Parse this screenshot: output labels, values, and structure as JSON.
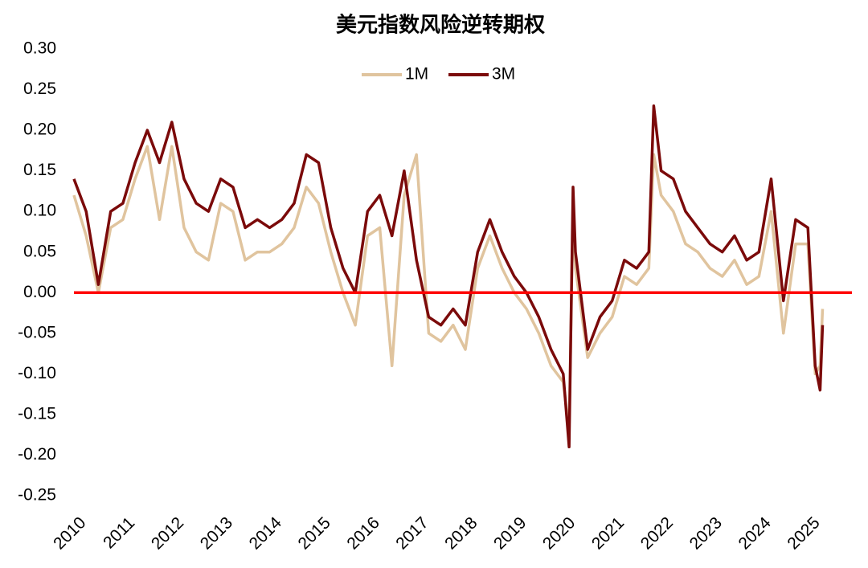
{
  "chart_data": {
    "type": "line",
    "title": "美元指数风险逆转期权",
    "x": [
      2010,
      2010.25,
      2010.5,
      2010.75,
      2011,
      2011.25,
      2011.5,
      2011.75,
      2012,
      2012.25,
      2012.5,
      2012.75,
      2013,
      2013.25,
      2013.5,
      2013.75,
      2014,
      2014.25,
      2014.5,
      2014.75,
      2015,
      2015.25,
      2015.5,
      2015.75,
      2016,
      2016.25,
      2016.5,
      2016.75,
      2017,
      2017.25,
      2017.5,
      2017.75,
      2018,
      2018.25,
      2018.5,
      2018.75,
      2019,
      2019.25,
      2019.5,
      2019.75,
      2020,
      2020.12,
      2020.2,
      2020.25,
      2020.5,
      2020.75,
      2021,
      2021.25,
      2021.5,
      2021.75,
      2021.85,
      2022,
      2022.25,
      2022.5,
      2022.75,
      2023,
      2023.25,
      2023.5,
      2023.75,
      2024,
      2024.25,
      2024.5,
      2024.75,
      2025,
      2025.15,
      2025.25,
      2025.3
    ],
    "series": [
      {
        "name": "1M",
        "color": "#e0c49e",
        "values": [
          0.12,
          0.07,
          0.0,
          0.08,
          0.09,
          0.14,
          0.18,
          0.09,
          0.18,
          0.08,
          0.05,
          0.04,
          0.11,
          0.1,
          0.04,
          0.05,
          0.05,
          0.06,
          0.08,
          0.13,
          0.11,
          0.05,
          0.0,
          -0.04,
          0.07,
          0.08,
          -0.09,
          0.12,
          0.17,
          -0.05,
          -0.06,
          -0.04,
          -0.07,
          0.03,
          0.07,
          0.03,
          0.0,
          -0.02,
          -0.05,
          -0.09,
          -0.11,
          -0.17,
          0.1,
          0.03,
          -0.08,
          -0.05,
          -0.03,
          0.02,
          0.01,
          0.03,
          0.17,
          0.12,
          0.1,
          0.06,
          0.05,
          0.03,
          0.02,
          0.04,
          0.01,
          0.02,
          0.1,
          -0.05,
          0.06,
          0.06,
          -0.1,
          -0.09,
          -0.02
        ]
      },
      {
        "name": "3M",
        "color": "#7b0a0a",
        "values": [
          0.14,
          0.1,
          0.01,
          0.1,
          0.11,
          0.16,
          0.2,
          0.16,
          0.21,
          0.14,
          0.11,
          0.1,
          0.14,
          0.13,
          0.08,
          0.09,
          0.08,
          0.09,
          0.11,
          0.17,
          0.16,
          0.08,
          0.03,
          0.0,
          0.1,
          0.12,
          0.07,
          0.15,
          0.04,
          -0.03,
          -0.04,
          -0.02,
          -0.04,
          0.05,
          0.09,
          0.05,
          0.02,
          0.0,
          -0.03,
          -0.07,
          -0.1,
          -0.19,
          0.13,
          0.05,
          -0.07,
          -0.03,
          -0.01,
          0.04,
          0.03,
          0.05,
          0.23,
          0.15,
          0.14,
          0.1,
          0.08,
          0.06,
          0.05,
          0.07,
          0.04,
          0.05,
          0.14,
          -0.01,
          0.09,
          0.08,
          -0.09,
          -0.12,
          -0.04
        ]
      }
    ],
    "xlim": [
      2010,
      2025.9
    ],
    "xticks": [
      2010,
      2011,
      2012,
      2013,
      2014,
      2015,
      2016,
      2017,
      2018,
      2019,
      2020,
      2021,
      2022,
      2023,
      2024,
      2025
    ],
    "ylim": [
      -0.25,
      0.3
    ],
    "yticks": [
      {
        "value": 0.3,
        "label": "0.30"
      },
      {
        "value": 0.25,
        "label": "0.25"
      },
      {
        "value": 0.2,
        "label": "0.20"
      },
      {
        "value": 0.15,
        "label": "0.15"
      },
      {
        "value": 0.1,
        "label": "0.10"
      },
      {
        "value": 0.05,
        "label": "0.05"
      },
      {
        "value": 0,
        "label": "0.00"
      },
      {
        "value": -0.05,
        "label": "-0.05"
      },
      {
        "value": -0.1,
        "label": "-0.10"
      },
      {
        "value": -0.15,
        "label": "-0.15"
      },
      {
        "value": -0.2,
        "label": "-0.20"
      },
      {
        "value": -0.25,
        "label": "-0.25"
      }
    ],
    "reference_line": {
      "value": 0,
      "color": "#ff0000"
    },
    "legend": "top"
  }
}
